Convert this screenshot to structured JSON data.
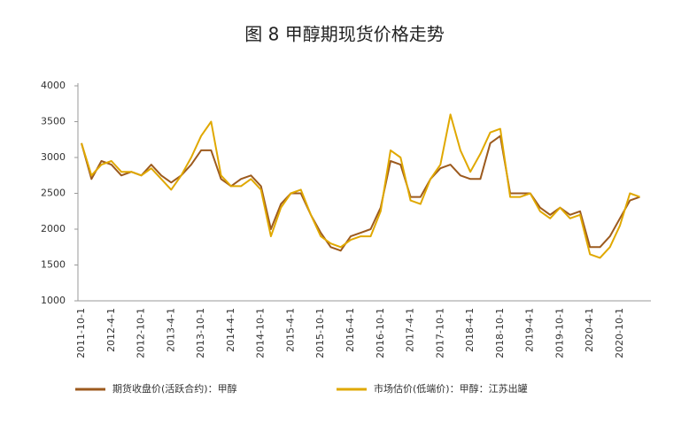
{
  "chart_data": {
    "type": "line",
    "title": "图 8 甲醇期现货价格走势",
    "categories": [
      "2011-10-1",
      null,
      null,
      "2012-4-1",
      null,
      null,
      "2012-10-1",
      null,
      null,
      "2013-4-1",
      null,
      null,
      "2013-10-1",
      null,
      null,
      "2014-4-1",
      null,
      null,
      "2014-10-1",
      null,
      null,
      "2015-4-1",
      null,
      null,
      "2015-10-1",
      null,
      null,
      "2016-4-1",
      null,
      null,
      "2016-10-1",
      null,
      null,
      "2017-4-1",
      null,
      null,
      "2017-10-1",
      null,
      null,
      "2018-4-1",
      null,
      null,
      "2018-10-1",
      null,
      null,
      "2019-4-1",
      null,
      null,
      "2019-10-1",
      null,
      null,
      "2020-4-1",
      null,
      null,
      "2020-10-1",
      null,
      null
    ],
    "series": [
      {
        "name": "期货收盘价(活跃合约)：甲醇",
        "color": "#9c5a1e",
        "values": [
          3200,
          2700,
          2950,
          2900,
          2750,
          2800,
          2750,
          2900,
          2750,
          2650,
          2750,
          2900,
          3100,
          3100,
          2700,
          2600,
          2700,
          2750,
          2600,
          2000,
          2350,
          2500,
          2500,
          2200,
          1950,
          1750,
          1700,
          1900,
          1950,
          2000,
          2300,
          2950,
          2900,
          2450,
          2450,
          2700,
          2850,
          2900,
          2750,
          2700,
          2700,
          3200,
          3300,
          2500,
          2500,
          2500,
          2300,
          2200,
          2300,
          2200,
          2250,
          1750,
          1750,
          1900,
          2150,
          2400,
          2450
        ]
      },
      {
        "name": "市场估价(低端价)：甲醇：江苏出罐",
        "color": "#e0a800",
        "values": [
          3200,
          2750,
          2900,
          2950,
          2800,
          2800,
          2750,
          2850,
          2700,
          2550,
          2750,
          3000,
          3300,
          3500,
          2750,
          2600,
          2600,
          2700,
          2550,
          1900,
          2300,
          2500,
          2550,
          2200,
          1900,
          1800,
          1750,
          1850,
          1900,
          1900,
          2250,
          3100,
          3000,
          2400,
          2350,
          2700,
          2900,
          3600,
          3100,
          2800,
          3050,
          3350,
          3400,
          2450,
          2450,
          2500,
          2250,
          2150,
          2300,
          2150,
          2200,
          1650,
          1600,
          1750,
          2050,
          2500,
          2450
        ]
      }
    ],
    "ylim": [
      1000,
      4000
    ],
    "yticks": [
      1000,
      1500,
      2000,
      2500,
      3000,
      3500,
      4000
    ]
  }
}
